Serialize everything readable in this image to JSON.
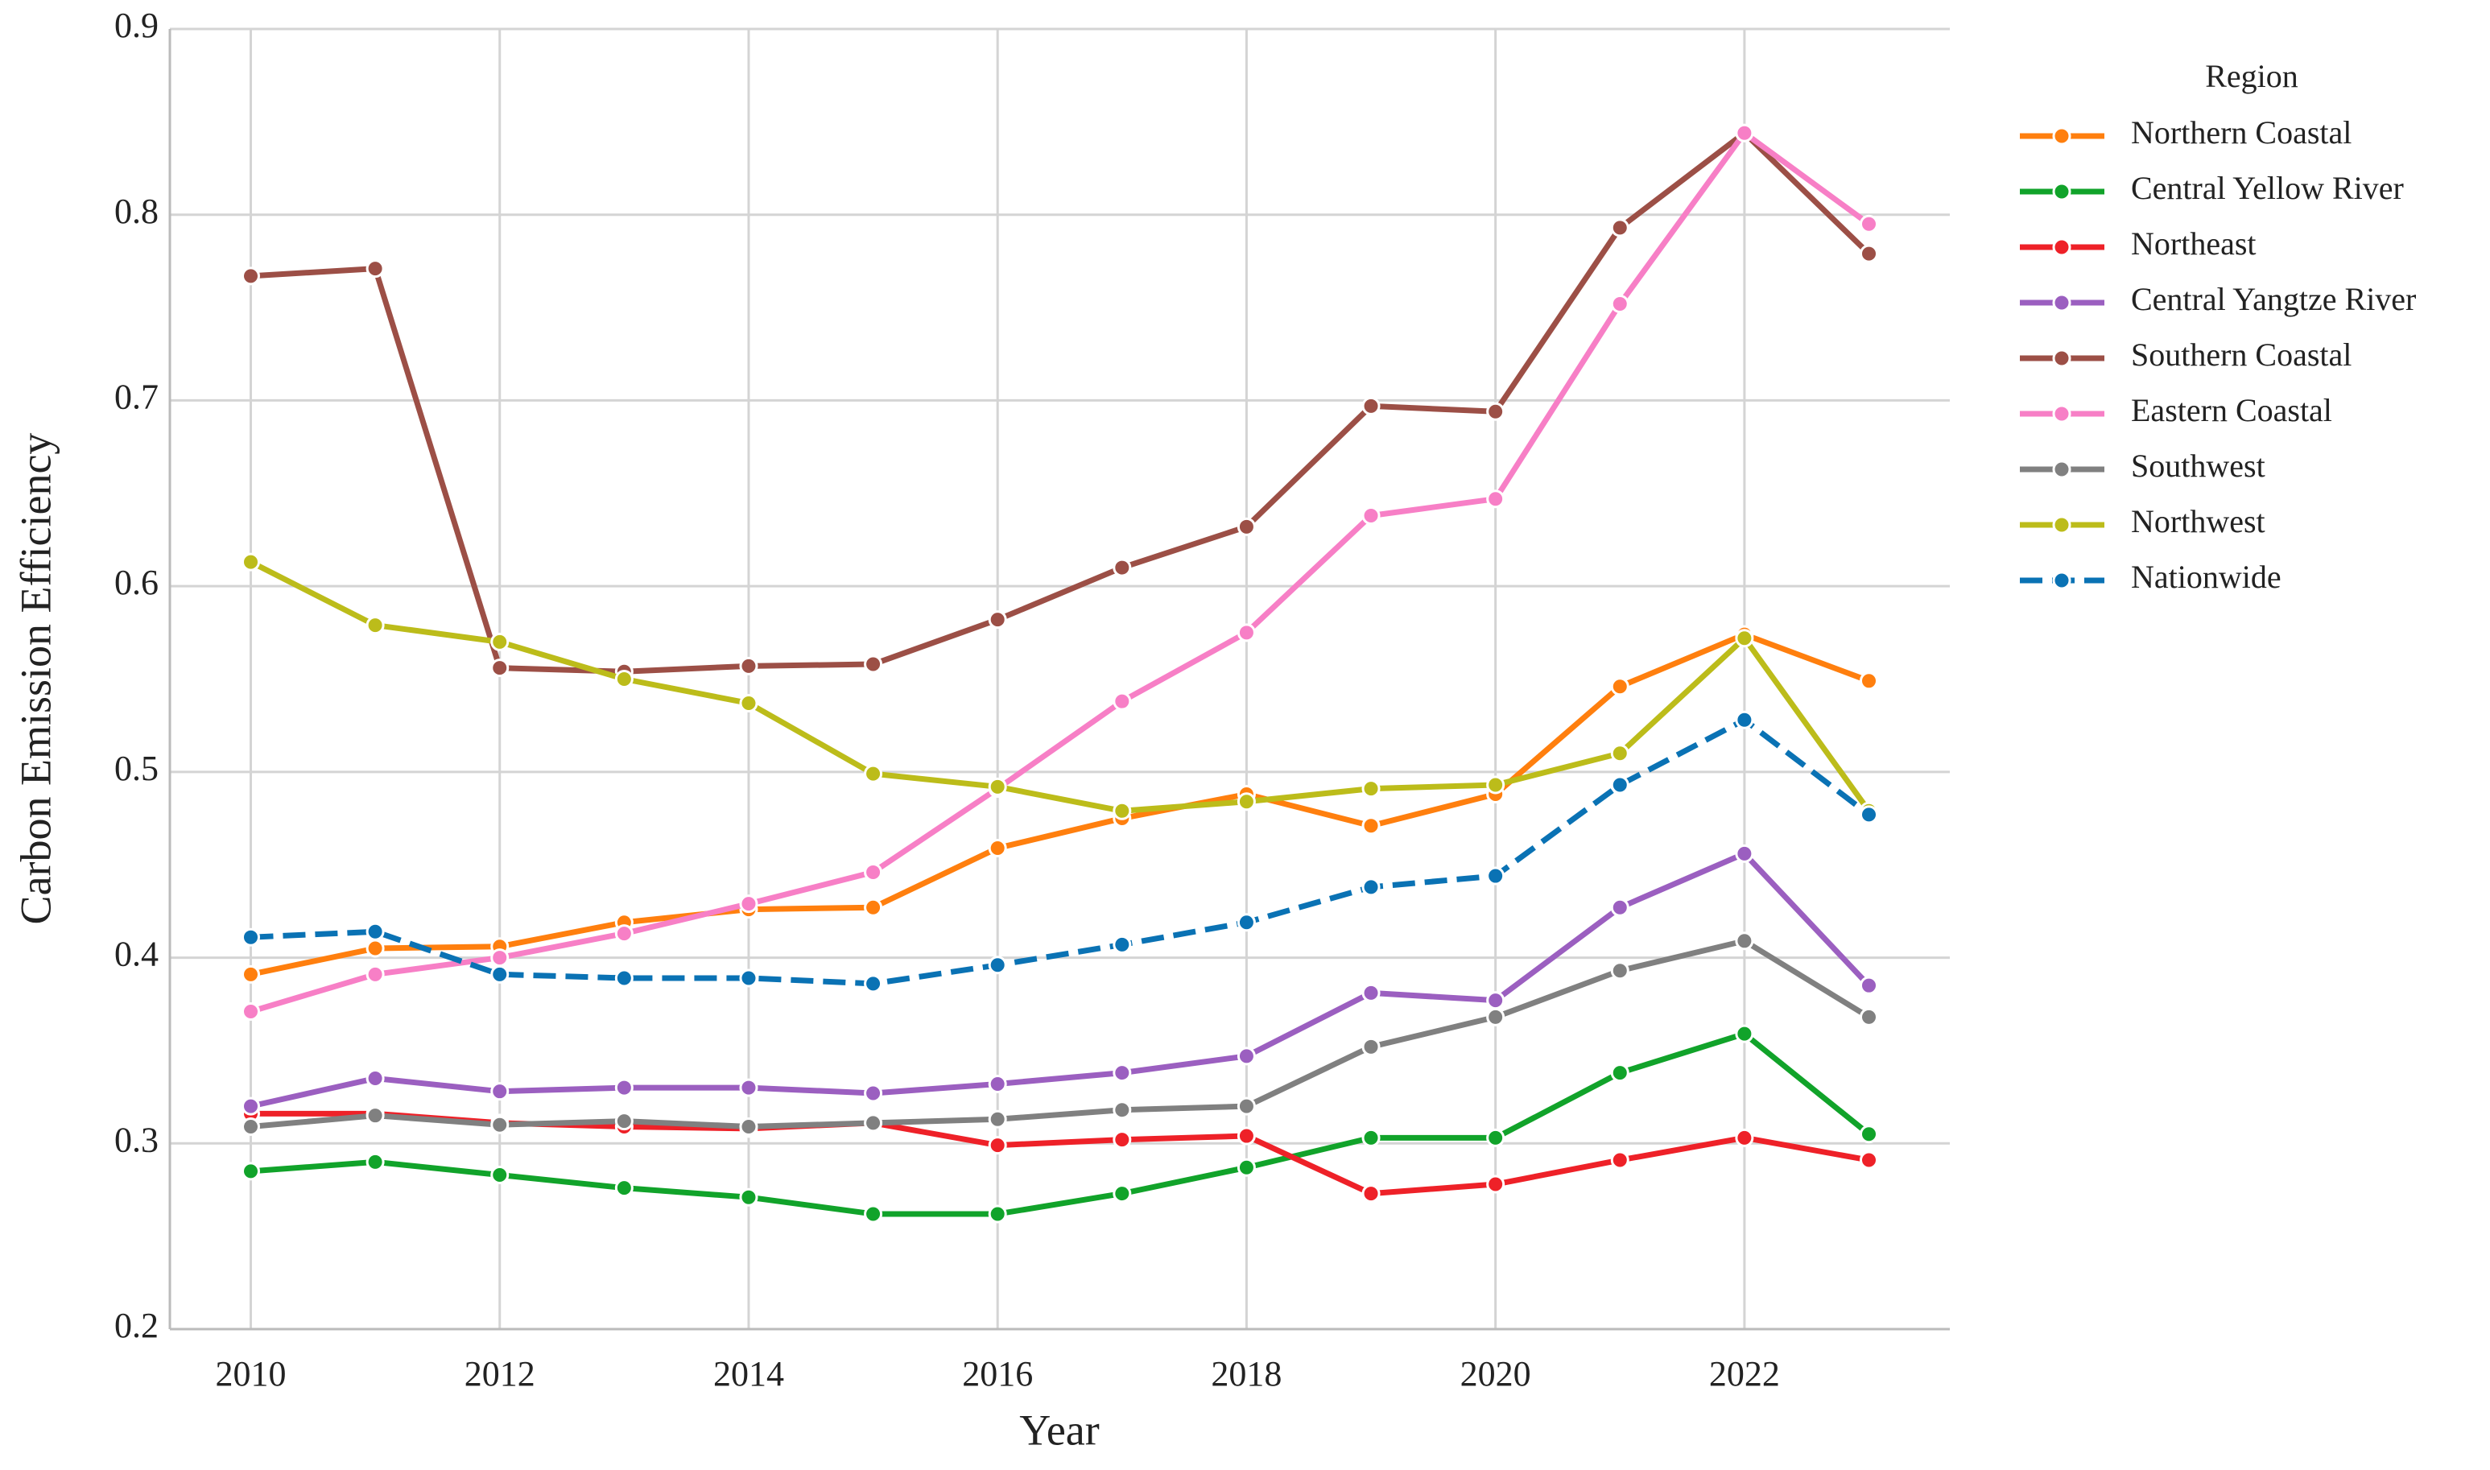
{
  "chart_data": {
    "type": "line",
    "x_label": "Year",
    "y_label": "Carbon Emission Efficiency",
    "legend_title": "Region",
    "legend": "upper right outside",
    "grid": true,
    "x": [
      2010,
      2011,
      2012,
      2013,
      2014,
      2015,
      2016,
      2017,
      2018,
      2019,
      2020,
      2021,
      2022,
      2023
    ],
    "xlim": [
      2009.35,
      2023.65
    ],
    "xticks": [
      2010,
      2012,
      2014,
      2016,
      2018,
      2020,
      2022
    ],
    "ylim": [
      0.2,
      0.9
    ],
    "yticks": [
      0.2,
      0.3,
      0.4,
      0.5,
      0.6,
      0.7,
      0.8,
      0.9
    ],
    "series": [
      {
        "name": "Northern Coastal",
        "color": "#ff7f0e",
        "values": [
          0.391,
          0.405,
          0.406,
          0.419,
          0.426,
          0.427,
          0.459,
          0.475,
          0.488,
          0.471,
          0.488,
          0.546,
          0.574,
          0.549
        ]
      },
      {
        "name": "Central Yellow River",
        "color": "#11a32a",
        "values": [
          0.285,
          0.29,
          0.283,
          0.276,
          0.271,
          0.262,
          0.262,
          0.273,
          0.287,
          0.303,
          0.303,
          0.338,
          0.359,
          0.305
        ]
      },
      {
        "name": "Northeast",
        "color": "#ee2128",
        "values": [
          0.316,
          0.316,
          0.311,
          0.309,
          0.308,
          0.311,
          0.299,
          0.302,
          0.304,
          0.273,
          0.278,
          0.291,
          0.303,
          0.291
        ]
      },
      {
        "name": "Central Yangtze River",
        "color": "#9b5fc0",
        "values": [
          0.32,
          0.335,
          0.328,
          0.33,
          0.33,
          0.327,
          0.332,
          0.338,
          0.347,
          0.381,
          0.377,
          0.427,
          0.456,
          0.385
        ]
      },
      {
        "name": "Southern Coastal",
        "color": "#9c4f46",
        "values": [
          0.767,
          0.771,
          0.556,
          0.554,
          0.557,
          0.558,
          0.582,
          0.61,
          0.632,
          0.697,
          0.694,
          0.793,
          0.844,
          0.779
        ]
      },
      {
        "name": "Eastern Coastal",
        "color": "#f77fc6",
        "values": [
          0.371,
          0.391,
          0.4,
          0.413,
          0.429,
          0.446,
          0.491,
          0.538,
          0.575,
          0.638,
          0.647,
          0.752,
          0.844,
          0.795
        ]
      },
      {
        "name": "Southwest",
        "color": "#808080",
        "values": [
          0.309,
          0.315,
          0.31,
          0.312,
          0.309,
          0.311,
          0.313,
          0.318,
          0.32,
          0.352,
          0.368,
          0.393,
          0.409,
          0.368
        ]
      },
      {
        "name": "Northwest",
        "color": "#bcbc1a",
        "values": [
          0.613,
          0.579,
          0.57,
          0.55,
          0.537,
          0.499,
          0.492,
          0.479,
          0.484,
          0.491,
          0.493,
          0.51,
          0.572,
          0.479
        ]
      },
      {
        "name": "Nationwide",
        "color": "#0a72b4",
        "dashed": true,
        "values": [
          0.411,
          0.414,
          0.391,
          0.389,
          0.389,
          0.386,
          0.396,
          0.407,
          0.419,
          0.438,
          0.444,
          0.493,
          0.528,
          0.477
        ]
      }
    ]
  }
}
